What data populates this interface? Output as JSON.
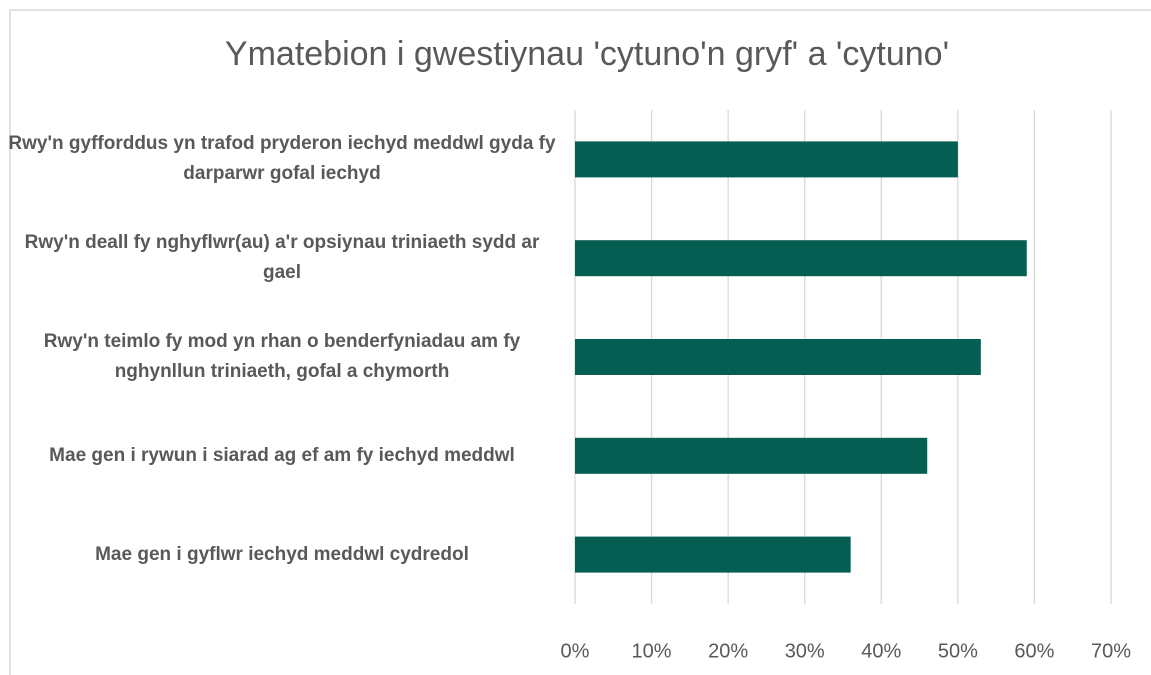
{
  "chart_data": {
    "type": "bar",
    "orientation": "horizontal",
    "title": "Ymatebion i gwestiynau 'cytuno'n gryf' a 'cytuno'",
    "categories": [
      "Rwy'n gyfforddus yn trafod pryderon iechyd meddwl gyda fy darparwr gofal iechyd",
      "Rwy'n deall fy nghyflwr(au) a'r opsiynau triniaeth sydd ar gael",
      "Rwy'n teimlo fy mod yn rhan o benderfyniadau am fy nghynllun triniaeth, gofal a chymorth",
      "Mae gen i rywun i siarad ag ef am fy iechyd meddwl",
      "Mae gen i gyflwr iechyd meddwl cydredol"
    ],
    "values": [
      50,
      59,
      53,
      46,
      36
    ],
    "color": "#055e52",
    "xlim": [
      0,
      70
    ],
    "xticks": [
      {
        "value": 0,
        "label": "0%"
      },
      {
        "value": 10,
        "label": "10%"
      },
      {
        "value": 20,
        "label": "20%"
      },
      {
        "value": 30,
        "label": "30%"
      },
      {
        "value": 40,
        "label": "40%"
      },
      {
        "value": 50,
        "label": "50%"
      },
      {
        "value": 60,
        "label": "60%"
      },
      {
        "value": 70,
        "label": "70%"
      }
    ],
    "grid": true
  }
}
